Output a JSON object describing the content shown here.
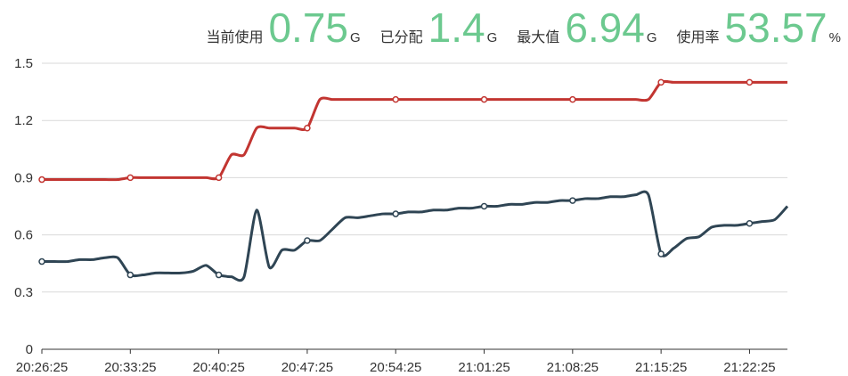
{
  "header_stats": [
    {
      "label": "当前使用",
      "value": "0.75",
      "unit": "G"
    },
    {
      "label": "已分配",
      "value": "1.4",
      "unit": "G"
    },
    {
      "label": "最大值",
      "value": "6.94",
      "unit": "G"
    },
    {
      "label": "使用率",
      "value": "53.57",
      "unit": "%"
    }
  ],
  "chart_data": {
    "type": "line",
    "categories": [
      "20:26:25",
      null,
      null,
      null,
      null,
      null,
      null,
      "20:33:25",
      null,
      null,
      null,
      null,
      null,
      null,
      "20:40:25",
      null,
      null,
      null,
      null,
      null,
      null,
      "20:47:25",
      null,
      null,
      null,
      null,
      null,
      null,
      "20:54:25",
      null,
      null,
      null,
      null,
      null,
      null,
      "21:01:25",
      null,
      null,
      null,
      null,
      null,
      null,
      "21:08:25",
      null,
      null,
      null,
      null,
      null,
      null,
      "21:15:25",
      null,
      null,
      null,
      null,
      null,
      null,
      "21:22:25",
      null,
      null,
      null
    ],
    "series": [
      {
        "color": "#c23531",
        "values": [
          0.89,
          0.89,
          0.89,
          0.89,
          0.89,
          0.89,
          0.89,
          0.9,
          0.9,
          0.9,
          0.9,
          0.9,
          0.9,
          0.9,
          0.9,
          1.02,
          1.02,
          1.16,
          1.16,
          1.16,
          1.16,
          1.16,
          1.31,
          1.31,
          1.31,
          1.31,
          1.31,
          1.31,
          1.31,
          1.31,
          1.31,
          1.31,
          1.31,
          1.31,
          1.31,
          1.31,
          1.31,
          1.31,
          1.31,
          1.31,
          1.31,
          1.31,
          1.31,
          1.31,
          1.31,
          1.31,
          1.31,
          1.31,
          1.31,
          1.4,
          1.4,
          1.4,
          1.4,
          1.4,
          1.4,
          1.4,
          1.4,
          1.4,
          1.4,
          1.4
        ]
      },
      {
        "color": "#2f4554",
        "values": [
          0.46,
          0.46,
          0.46,
          0.47,
          0.47,
          0.48,
          0.48,
          0.39,
          0.39,
          0.4,
          0.4,
          0.4,
          0.41,
          0.44,
          0.39,
          0.38,
          0.38,
          0.73,
          0.43,
          0.52,
          0.52,
          0.57,
          0.57,
          0.63,
          0.69,
          0.69,
          0.7,
          0.71,
          0.71,
          0.72,
          0.72,
          0.73,
          0.73,
          0.74,
          0.74,
          0.75,
          0.75,
          0.76,
          0.76,
          0.77,
          0.77,
          0.78,
          0.78,
          0.79,
          0.79,
          0.8,
          0.8,
          0.81,
          0.81,
          0.5,
          0.53,
          0.58,
          0.59,
          0.64,
          0.65,
          0.65,
          0.66,
          0.67,
          0.68,
          0.75
        ]
      }
    ],
    "ylim": [
      0,
      1.5
    ],
    "yticks": [
      0,
      0.3,
      0.6,
      0.9,
      1.2,
      1.5
    ],
    "grid": true,
    "smooth": true
  }
}
